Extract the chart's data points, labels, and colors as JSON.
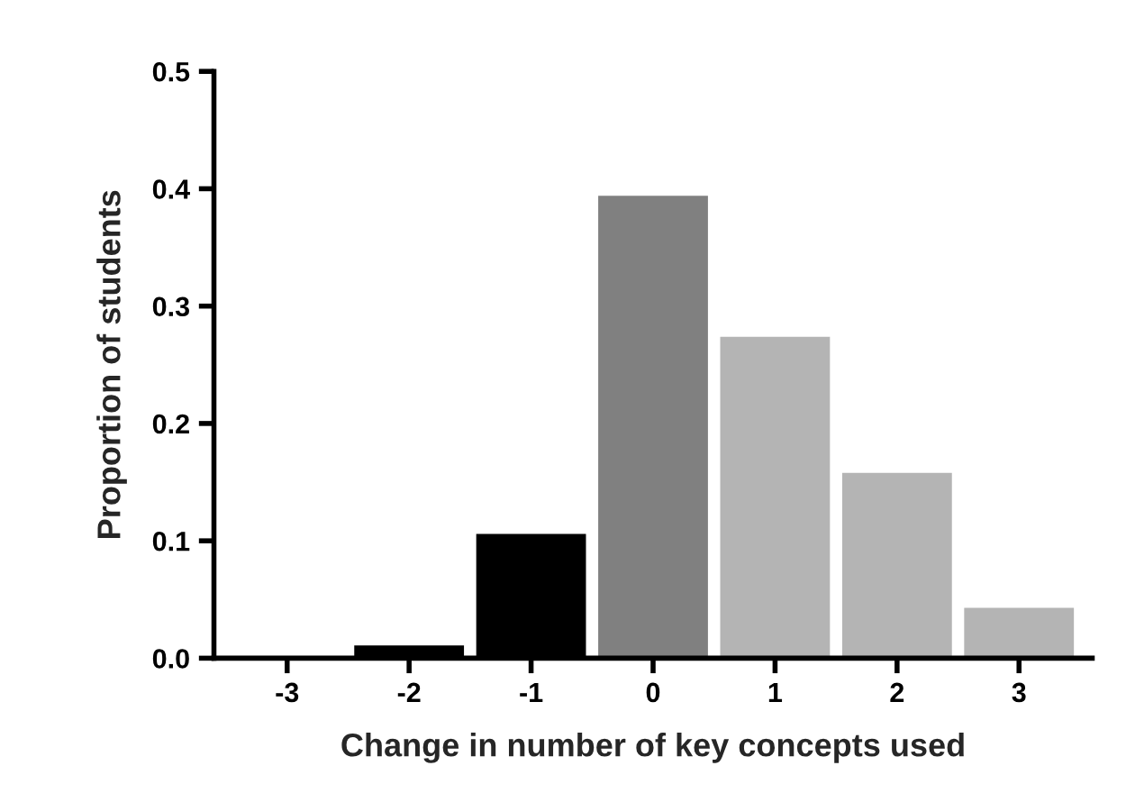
{
  "chart_data": {
    "type": "bar",
    "xlabel": "Change in number of key concepts used",
    "ylabel": "Proportion of students",
    "categories": [
      "-3",
      "-2",
      "-1",
      "0",
      "1",
      "2",
      "3"
    ],
    "values": [
      0.002,
      0.012,
      0.107,
      0.395,
      0.275,
      0.159,
      0.044
    ],
    "colors": [
      "#000000",
      "#000000",
      "#000000",
      "#808080",
      "#b4b4b4",
      "#b4b4b4",
      "#b4b4b4"
    ],
    "ylim": [
      0,
      0.5
    ],
    "yticks": [
      {
        "value": 0,
        "label": "0.0"
      },
      0.1,
      0.2,
      0.3,
      0.4,
      0.5
    ],
    "grid": false
  }
}
